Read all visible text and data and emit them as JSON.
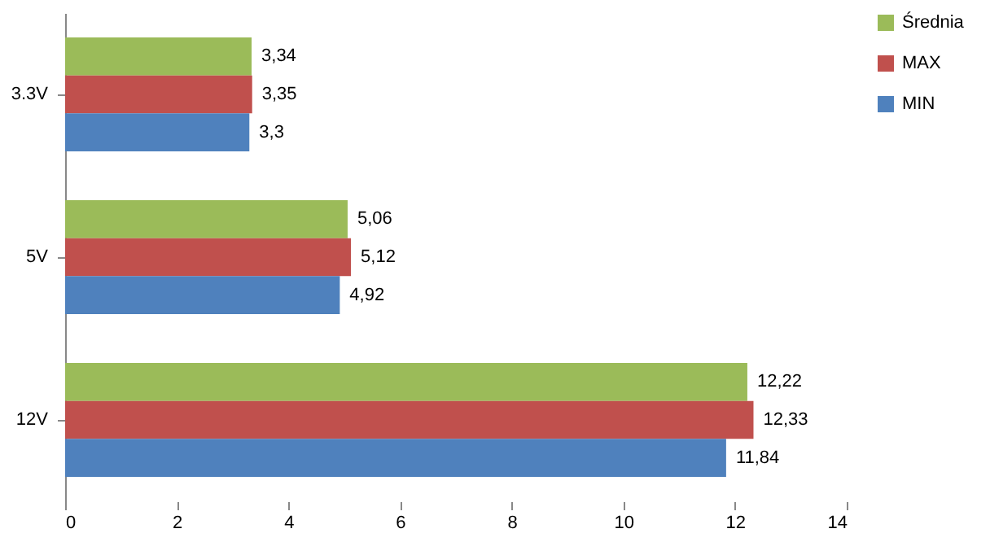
{
  "chart_data": {
    "type": "bar",
    "orientation": "horizontal",
    "categories": [
      "3.3V",
      "5V",
      "12V"
    ],
    "series": [
      {
        "name": "Średnia",
        "color": "#9bbb59",
        "values": [
          3.34,
          5.06,
          12.22
        ],
        "value_labels": [
          "3,34",
          "5,06",
          "12,22"
        ]
      },
      {
        "name": "MAX",
        "color": "#c0504d",
        "values": [
          3.35,
          5.12,
          12.33
        ],
        "value_labels": [
          "3,35",
          "5,12",
          "12,33"
        ]
      },
      {
        "name": "MIN",
        "color": "#4f81bd",
        "values": [
          3.3,
          4.92,
          11.84
        ],
        "value_labels": [
          "3,3",
          "4,92",
          "11,84"
        ]
      }
    ],
    "xlim": [
      0,
      14
    ],
    "xticks": [
      0,
      2,
      4,
      6,
      8,
      10,
      12,
      14
    ],
    "grid": false,
    "legend": "right"
  }
}
